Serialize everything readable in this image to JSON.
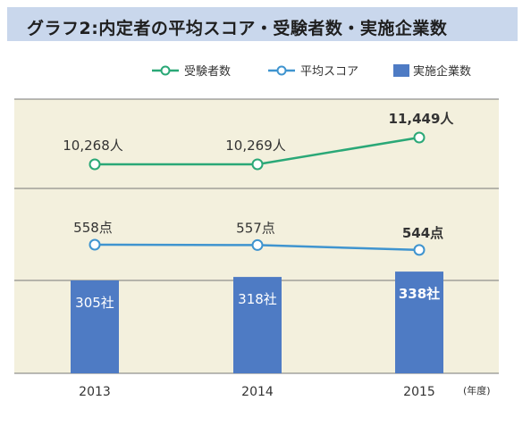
{
  "title": "グラフ2:内定者の平均スコア・受験者数・実施企業数",
  "legend": {
    "applicants": "受験者数",
    "avg_score": "平均スコア",
    "companies": "実施企業数"
  },
  "unit_label": "(年度)",
  "colors": {
    "background": "#f3f0dd",
    "applicants_line": "#2aa877",
    "score_line": "#3f94cf",
    "bars": "#4e7bc4",
    "title_bg": "#c9d7ec"
  },
  "chart_data": {
    "type": "bar+line",
    "categories": [
      "2013",
      "2014",
      "2015"
    ],
    "series": [
      {
        "name": "受験者数",
        "type": "line",
        "values": [
          10268,
          10269,
          11449
        ],
        "labels": [
          "10,268人",
          "10,269人",
          "11,449人"
        ]
      },
      {
        "name": "平均スコア",
        "type": "line",
        "values": [
          558,
          557,
          544
        ],
        "labels": [
          "558点",
          "557点",
          "544点"
        ]
      },
      {
        "name": "実施企業数",
        "type": "bar",
        "values": [
          305,
          318,
          338
        ],
        "labels": [
          "305社",
          "318社",
          "338社"
        ]
      }
    ],
    "grid": true,
    "legend_position": "top-right"
  }
}
